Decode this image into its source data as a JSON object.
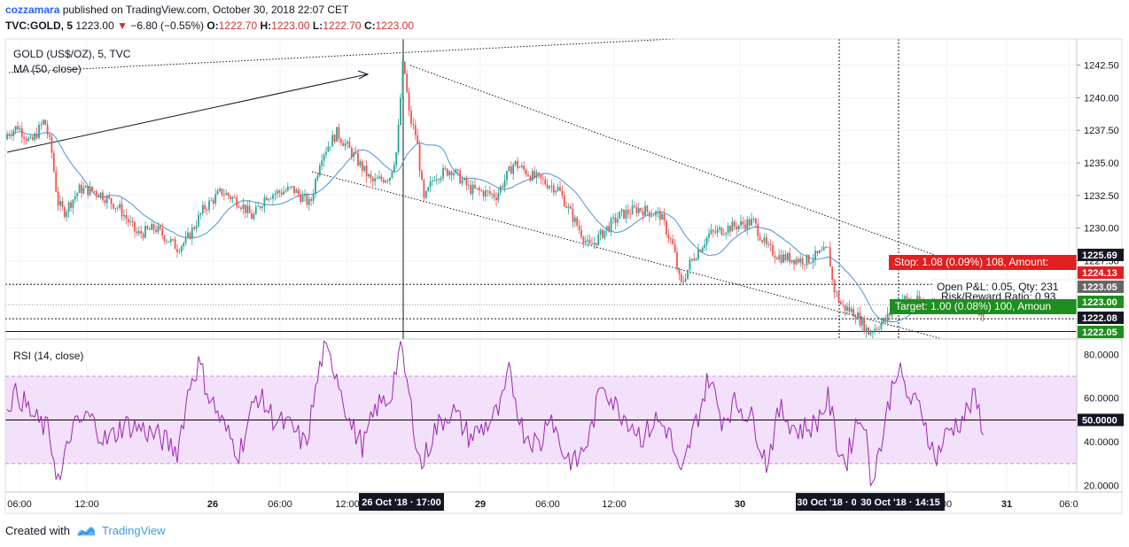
{
  "header": {
    "author": "cozzamara",
    "published_text": " published on TradingView.com, October 30, 2018 22:07 CET",
    "symbol": "TVC:GOLD, 5",
    "last": "1223.00",
    "change": "−6.80 (−0.55%)",
    "o_label": "O:",
    "o": "1222.70",
    "h_label": "H:",
    "h": "1223.00",
    "l_label": "L:",
    "l": "1222.70",
    "c_label": "C:",
    "c": "1223.00"
  },
  "legend": {
    "title": "GOLD (US$/OZ), 5, TVC",
    "ma": "MA (50, close)",
    "rsi": "RSI (14, close)"
  },
  "footer": {
    "created": "Created with",
    "brand": "TradingView"
  },
  "colors": {
    "up": "#26a69a",
    "down": "#ef5350",
    "ma": "#5b9bd5",
    "rsi": "#9c27b0",
    "rsi_band": "#f3e0fb"
  },
  "chart_data": {
    "type": "candlestick",
    "price_axis": [
      "1242.50",
      "1240.00",
      "1237.50",
      "1235.00",
      "1232.50",
      "1230.00",
      "1227.50"
    ],
    "price_range": [
      1221.5,
      1244.5
    ],
    "time_axis": [
      "06:00",
      "12:00",
      "26",
      "06:00",
      "12:00",
      "29",
      "06:00",
      "12:00",
      "30",
      "00",
      "31",
      "06:0"
    ],
    "time_axis_highlights": [
      "26 Oct '18 · 17:00",
      "30 Oct '18 · 0",
      "30 Oct '18 · 14:15"
    ],
    "price_labels": [
      {
        "text": "1225.69",
        "style": "black",
        "price": 1225.69
      },
      {
        "text": "1224.13",
        "style": "red",
        "price": 1224.13
      },
      {
        "text": "1223.05",
        "style": "gray",
        "price": 1223.05
      },
      {
        "text": "1223.00",
        "style": "green",
        "price": 1223.0
      },
      {
        "text": "1222.08",
        "style": "black",
        "price": 1222.08
      },
      {
        "text": "1222.05",
        "style": "green",
        "price": 1222.05
      }
    ],
    "position_tool": {
      "stop": "Stop: 1.08 (0.09%) 108, Amount:",
      "pnl": "Open P&L: 0.05, Qty: 231",
      "rr": "Risk/Reward Ratio: 0.93",
      "target": "Target: 1.00 (0.08%) 100, Amoun"
    },
    "price_keypoints": [
      [
        0,
        1236.8
      ],
      [
        20,
        1237.8
      ],
      [
        35,
        1236.5
      ],
      [
        50,
        1238.3
      ],
      [
        58,
        1236
      ],
      [
        65,
        1232
      ],
      [
        72,
        1231.2
      ],
      [
        90,
        1233
      ],
      [
        110,
        1232.8
      ],
      [
        135,
        1231.5
      ],
      [
        155,
        1229.5
      ],
      [
        175,
        1230
      ],
      [
        200,
        1228.5
      ],
      [
        210,
        1229
      ],
      [
        230,
        1231.5
      ],
      [
        250,
        1232.8
      ],
      [
        270,
        1232
      ],
      [
        285,
        1230.8
      ],
      [
        300,
        1232.5
      ],
      [
        330,
        1233
      ],
      [
        350,
        1231.8
      ],
      [
        362,
        1235.5
      ],
      [
        380,
        1237.3
      ],
      [
        400,
        1235.5
      ],
      [
        420,
        1233.5
      ],
      [
        440,
        1234
      ],
      [
        448,
        1236
      ],
      [
        455,
        1243
      ],
      [
        462,
        1238.5
      ],
      [
        470,
        1237
      ],
      [
        478,
        1232
      ],
      [
        490,
        1234
      ],
      [
        510,
        1234.5
      ],
      [
        530,
        1233
      ],
      [
        560,
        1232.5
      ],
      [
        580,
        1235
      ],
      [
        600,
        1234
      ],
      [
        630,
        1233
      ],
      [
        645,
        1231
      ],
      [
        665,
        1228.5
      ],
      [
        685,
        1230
      ],
      [
        700,
        1231
      ],
      [
        720,
        1231.5
      ],
      [
        745,
        1231
      ],
      [
        760,
        1228.5
      ],
      [
        768,
        1225.5
      ],
      [
        780,
        1227.5
      ],
      [
        800,
        1229.5
      ],
      [
        820,
        1230
      ],
      [
        850,
        1230.5
      ],
      [
        865,
        1228.5
      ],
      [
        880,
        1227.8
      ],
      [
        910,
        1227.5
      ],
      [
        935,
        1228.3
      ],
      [
        940,
        1225.5
      ],
      [
        950,
        1224
      ],
      [
        965,
        1223.5
      ],
      [
        980,
        1222
      ],
      [
        1000,
        1223
      ],
      [
        1015,
        1224.6
      ],
      [
        1030,
        1224.4
      ],
      [
        1060,
        1224.2
      ],
      [
        1080,
        1224
      ],
      [
        1095,
        1224.1
      ],
      [
        1110,
        1223.6
      ]
    ],
    "rsi_axis": [
      "80.0000",
      "60.0000",
      "50.0000",
      "40.0000",
      "20.0000"
    ],
    "rsi_range": [
      17,
      87
    ],
    "rsi_bands": [
      30,
      70
    ],
    "rsi_keypoints": [
      [
        0,
        55
      ],
      [
        20,
        62
      ],
      [
        40,
        50
      ],
      [
        55,
        45
      ],
      [
        67,
        20
      ],
      [
        80,
        45
      ],
      [
        100,
        52
      ],
      [
        120,
        40
      ],
      [
        140,
        48
      ],
      [
        160,
        46
      ],
      [
        180,
        42
      ],
      [
        200,
        36
      ],
      [
        215,
        68
      ],
      [
        225,
        76
      ],
      [
        235,
        62
      ],
      [
        255,
        45
      ],
      [
        270,
        35
      ],
      [
        290,
        62
      ],
      [
        310,
        50
      ],
      [
        330,
        46
      ],
      [
        345,
        38
      ],
      [
        360,
        72
      ],
      [
        365,
        82
      ],
      [
        380,
        72
      ],
      [
        395,
        48
      ],
      [
        410,
        38
      ],
      [
        425,
        56
      ],
      [
        440,
        60
      ],
      [
        452,
        84
      ],
      [
        462,
        60
      ],
      [
        475,
        28
      ],
      [
        490,
        45
      ],
      [
        510,
        55
      ],
      [
        530,
        42
      ],
      [
        550,
        48
      ],
      [
        565,
        55
      ],
      [
        575,
        72
      ],
      [
        590,
        45
      ],
      [
        610,
        38
      ],
      [
        620,
        55
      ],
      [
        635,
        35
      ],
      [
        650,
        30
      ],
      [
        665,
        42
      ],
      [
        680,
        68
      ],
      [
        695,
        56
      ],
      [
        710,
        50
      ],
      [
        725,
        42
      ],
      [
        740,
        50
      ],
      [
        755,
        45
      ],
      [
        768,
        22
      ],
      [
        780,
        42
      ],
      [
        790,
        55
      ],
      [
        800,
        70
      ],
      [
        815,
        50
      ],
      [
        830,
        58
      ],
      [
        850,
        50
      ],
      [
        865,
        30
      ],
      [
        880,
        55
      ],
      [
        900,
        45
      ],
      [
        920,
        48
      ],
      [
        935,
        60
      ],
      [
        945,
        38
      ],
      [
        955,
        30
      ],
      [
        965,
        48
      ],
      [
        975,
        52
      ],
      [
        982,
        22
      ],
      [
        995,
        40
      ],
      [
        1005,
        62
      ],
      [
        1012,
        75
      ],
      [
        1025,
        60
      ],
      [
        1040,
        55
      ],
      [
        1055,
        32
      ],
      [
        1070,
        45
      ],
      [
        1085,
        50
      ],
      [
        1100,
        60
      ],
      [
        1110,
        46
      ]
    ]
  }
}
